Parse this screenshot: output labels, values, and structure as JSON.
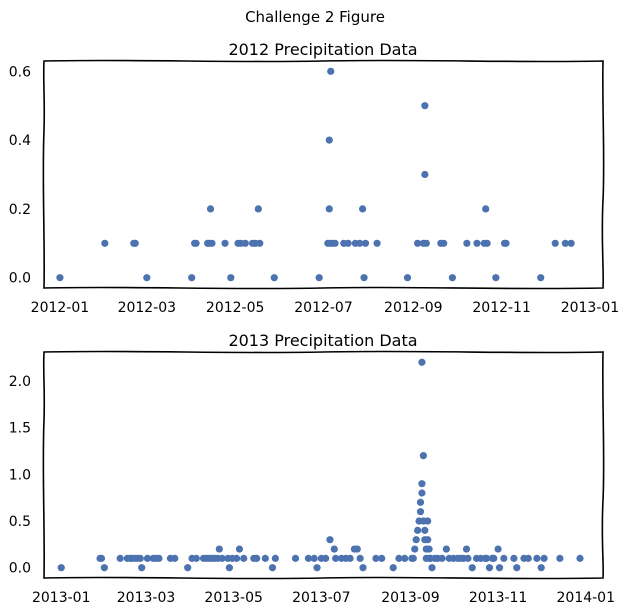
{
  "figure": {
    "suptitle": "Challenge 2 Figure"
  },
  "colors": {
    "points": "#4c72b0",
    "frame": "#000000",
    "background": "#ffffff"
  },
  "chart_data": [
    {
      "type": "scatter",
      "title": "2012 Precipitation Data",
      "xlabel": "",
      "ylabel": "",
      "xlim": [
        "2011-12-21",
        "2013-01-10"
      ],
      "ylim": [
        -0.03,
        0.63
      ],
      "x_ticks": [
        "2012-01",
        "2012-03",
        "2012-05",
        "2012-07",
        "2012-09",
        "2012-11",
        "2013-01"
      ],
      "y_ticks": [
        "0.0",
        "0.2",
        "0.4",
        "0.6"
      ],
      "grid": false,
      "points": [
        [
          "2012-01-01",
          0.0
        ],
        [
          "2012-02-01",
          0.1
        ],
        [
          "2012-02-21",
          0.1
        ],
        [
          "2012-02-22",
          0.1
        ],
        [
          "2012-03-01",
          0.0
        ],
        [
          "2012-04-01",
          0.0
        ],
        [
          "2012-04-03",
          0.1
        ],
        [
          "2012-04-04",
          0.1
        ],
        [
          "2012-04-12",
          0.1
        ],
        [
          "2012-04-13",
          0.1
        ],
        [
          "2012-04-14",
          0.2
        ],
        [
          "2012-04-15",
          0.1
        ],
        [
          "2012-04-24",
          0.1
        ],
        [
          "2012-04-28",
          0.0
        ],
        [
          "2012-05-03",
          0.1
        ],
        [
          "2012-05-05",
          0.1
        ],
        [
          "2012-05-08",
          0.1
        ],
        [
          "2012-05-13",
          0.1
        ],
        [
          "2012-05-15",
          0.1
        ],
        [
          "2012-05-17",
          0.2
        ],
        [
          "2012-05-18",
          0.1
        ],
        [
          "2012-05-28",
          0.0
        ],
        [
          "2012-06-28",
          0.0
        ],
        [
          "2012-07-04",
          0.1
        ],
        [
          "2012-07-05",
          0.2
        ],
        [
          "2012-07-05",
          0.4
        ],
        [
          "2012-07-06",
          0.6
        ],
        [
          "2012-07-06",
          0.1
        ],
        [
          "2012-07-07",
          0.1
        ],
        [
          "2012-07-09",
          0.1
        ],
        [
          "2012-07-15",
          0.1
        ],
        [
          "2012-07-18",
          0.1
        ],
        [
          "2012-07-23",
          0.1
        ],
        [
          "2012-07-26",
          0.1
        ],
        [
          "2012-07-28",
          0.2
        ],
        [
          "2012-07-29",
          0.0
        ],
        [
          "2012-07-30",
          0.1
        ],
        [
          "2012-08-07",
          0.1
        ],
        [
          "2012-08-28",
          0.0
        ],
        [
          "2012-09-04",
          0.1
        ],
        [
          "2012-09-08",
          0.1
        ],
        [
          "2012-09-09",
          0.5
        ],
        [
          "2012-09-09",
          0.3
        ],
        [
          "2012-09-10",
          0.1
        ],
        [
          "2012-09-20",
          0.1
        ],
        [
          "2012-09-22",
          0.1
        ],
        [
          "2012-09-28",
          0.0
        ],
        [
          "2012-10-08",
          0.1
        ],
        [
          "2012-10-15",
          0.1
        ],
        [
          "2012-10-20",
          0.1
        ],
        [
          "2012-10-21",
          0.2
        ],
        [
          "2012-10-22",
          0.1
        ],
        [
          "2012-10-28",
          0.0
        ],
        [
          "2012-11-03",
          0.1
        ],
        [
          "2012-11-04",
          0.1
        ],
        [
          "2012-11-28",
          0.0
        ],
        [
          "2012-12-08",
          0.1
        ],
        [
          "2012-12-15",
          0.1
        ],
        [
          "2012-12-19",
          0.1
        ]
      ]
    },
    {
      "type": "scatter",
      "title": "2013 Precipitation Data",
      "xlabel": "",
      "ylabel": "",
      "xlim": [
        "2012-12-20",
        "2014-01-13"
      ],
      "ylim": [
        -0.11,
        2.31
      ],
      "x_ticks": [
        "2013-01",
        "2013-03",
        "2013-05",
        "2013-07",
        "2013-09",
        "2013-11",
        "2014-01"
      ],
      "y_ticks": [
        "0.0",
        "0.5",
        "1.0",
        "1.5",
        "2.0"
      ],
      "grid": false,
      "points": [
        [
          "2013-01-01",
          0.0
        ],
        [
          "2013-01-28",
          0.1
        ],
        [
          "2013-01-29",
          0.1
        ],
        [
          "2013-01-31",
          0.0
        ],
        [
          "2013-02-11",
          0.1
        ],
        [
          "2013-02-16",
          0.1
        ],
        [
          "2013-02-18",
          0.1
        ],
        [
          "2013-02-19",
          0.1
        ],
        [
          "2013-02-21",
          0.1
        ],
        [
          "2013-02-23",
          0.1
        ],
        [
          "2013-02-25",
          0.1
        ],
        [
          "2013-02-26",
          0.0
        ],
        [
          "2013-03-02",
          0.1
        ],
        [
          "2013-03-06",
          0.1
        ],
        [
          "2013-03-08",
          0.1
        ],
        [
          "2013-03-10",
          0.1
        ],
        [
          "2013-03-18",
          0.1
        ],
        [
          "2013-03-21",
          0.1
        ],
        [
          "2013-03-30",
          0.0
        ],
        [
          "2013-04-02",
          0.1
        ],
        [
          "2013-04-05",
          0.1
        ],
        [
          "2013-04-10",
          0.1
        ],
        [
          "2013-04-12",
          0.1
        ],
        [
          "2013-04-14",
          0.1
        ],
        [
          "2013-04-16",
          0.1
        ],
        [
          "2013-04-18",
          0.1
        ],
        [
          "2013-04-20",
          0.1
        ],
        [
          "2013-04-21",
          0.2
        ],
        [
          "2013-04-23",
          0.1
        ],
        [
          "2013-04-27",
          0.1
        ],
        [
          "2013-04-28",
          0.0
        ],
        [
          "2013-04-30",
          0.1
        ],
        [
          "2013-05-03",
          0.1
        ],
        [
          "2013-05-05",
          0.2
        ],
        [
          "2013-05-08",
          0.1
        ],
        [
          "2013-05-15",
          0.1
        ],
        [
          "2013-05-17",
          0.1
        ],
        [
          "2013-05-23",
          0.1
        ],
        [
          "2013-05-28",
          0.0
        ],
        [
          "2013-05-30",
          0.1
        ],
        [
          "2013-06-13",
          0.1
        ],
        [
          "2013-06-22",
          0.1
        ],
        [
          "2013-06-26",
          0.1
        ],
        [
          "2013-06-28",
          0.0
        ],
        [
          "2013-07-01",
          0.1
        ],
        [
          "2013-07-04",
          0.1
        ],
        [
          "2013-07-07",
          0.3
        ],
        [
          "2013-07-10",
          0.2
        ],
        [
          "2013-07-11",
          0.1
        ],
        [
          "2013-07-15",
          0.1
        ],
        [
          "2013-07-18",
          0.1
        ],
        [
          "2013-07-21",
          0.1
        ],
        [
          "2013-07-24",
          0.2
        ],
        [
          "2013-07-26",
          0.2
        ],
        [
          "2013-07-28",
          0.1
        ],
        [
          "2013-07-30",
          0.0
        ],
        [
          "2013-08-08",
          0.1
        ],
        [
          "2013-08-12",
          0.1
        ],
        [
          "2013-08-20",
          0.0
        ],
        [
          "2013-08-24",
          0.1
        ],
        [
          "2013-08-28",
          0.1
        ],
        [
          "2013-09-02",
          0.1
        ],
        [
          "2013-09-03",
          0.1
        ],
        [
          "2013-09-04",
          0.2
        ],
        [
          "2013-09-05",
          0.3
        ],
        [
          "2013-09-06",
          0.4
        ],
        [
          "2013-09-07",
          0.5
        ],
        [
          "2013-09-08",
          0.6
        ],
        [
          "2013-09-08",
          0.7
        ],
        [
          "2013-09-09",
          0.8
        ],
        [
          "2013-09-09",
          0.9
        ],
        [
          "2013-09-09",
          2.2
        ],
        [
          "2013-09-10",
          1.2
        ],
        [
          "2013-09-10",
          0.5
        ],
        [
          "2013-09-11",
          0.4
        ],
        [
          "2013-09-11",
          0.3
        ],
        [
          "2013-09-12",
          0.2
        ],
        [
          "2013-09-12",
          0.1
        ],
        [
          "2013-09-13",
          0.5
        ],
        [
          "2013-09-13",
          0.3
        ],
        [
          "2013-09-14",
          0.2
        ],
        [
          "2013-09-14",
          0.1
        ],
        [
          "2013-09-15",
          0.1
        ],
        [
          "2013-09-16",
          0.0
        ],
        [
          "2013-09-18",
          0.1
        ],
        [
          "2013-09-20",
          0.1
        ],
        [
          "2013-09-23",
          0.1
        ],
        [
          "2013-09-26",
          0.2
        ],
        [
          "2013-09-28",
          0.1
        ],
        [
          "2013-10-01",
          0.1
        ],
        [
          "2013-10-04",
          0.1
        ],
        [
          "2013-10-06",
          0.1
        ],
        [
          "2013-10-08",
          0.1
        ],
        [
          "2013-10-10",
          0.2
        ],
        [
          "2013-10-11",
          0.1
        ],
        [
          "2013-10-14",
          0.0
        ],
        [
          "2013-10-17",
          0.1
        ],
        [
          "2013-10-20",
          0.1
        ],
        [
          "2013-10-23",
          0.1
        ],
        [
          "2013-10-24",
          0.1
        ],
        [
          "2013-10-26",
          0.0
        ],
        [
          "2013-10-28",
          0.1
        ],
        [
          "2013-10-29",
          0.1
        ],
        [
          "2013-11-01",
          0.2
        ],
        [
          "2013-11-02",
          0.0
        ],
        [
          "2013-11-05",
          0.1
        ],
        [
          "2013-11-12",
          0.1
        ],
        [
          "2013-11-14",
          0.0
        ],
        [
          "2013-11-19",
          0.1
        ],
        [
          "2013-11-22",
          0.1
        ],
        [
          "2013-11-28",
          0.1
        ],
        [
          "2013-12-01",
          0.0
        ],
        [
          "2013-12-03",
          0.1
        ],
        [
          "2013-12-14",
          0.1
        ],
        [
          "2013-12-28",
          0.1
        ]
      ]
    }
  ]
}
